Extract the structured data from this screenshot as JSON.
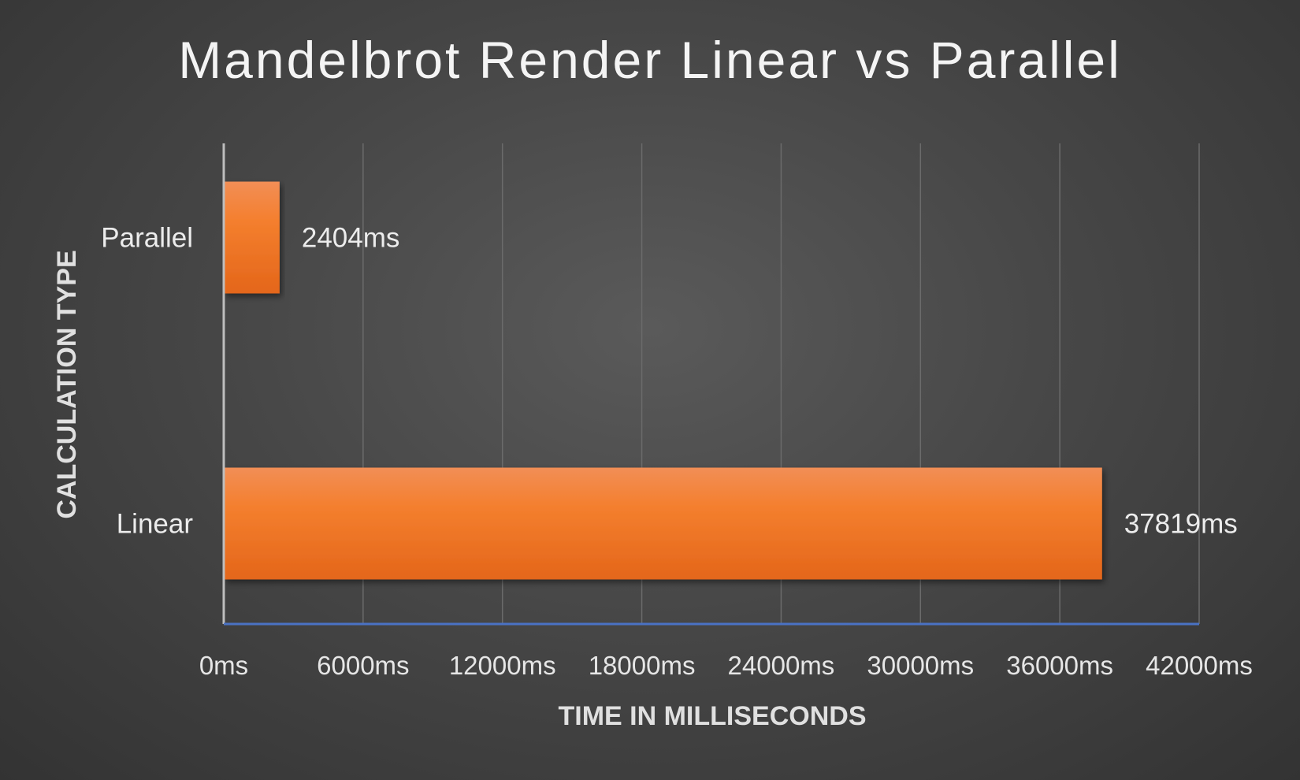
{
  "chart_data": {
    "type": "bar",
    "orientation": "horizontal",
    "title": "Mandelbrot Render Linear vs Parallel",
    "xlabel": "TIME IN MILLISECONDS",
    "ylabel": "CALCULATION TYPE",
    "categories": [
      "Parallel",
      "Linear"
    ],
    "values": [
      2404,
      37819
    ],
    "data_labels": [
      "2404ms",
      "37819ms"
    ],
    "xlim": [
      0,
      42000
    ],
    "x_ticks": [
      0,
      6000,
      12000,
      18000,
      24000,
      30000,
      36000,
      42000
    ],
    "x_tick_labels": [
      "0ms",
      "6000ms",
      "12000ms",
      "18000ms",
      "24000ms",
      "30000ms",
      "36000ms",
      "42000ms"
    ],
    "grid": "vertical",
    "legend": "none",
    "bar_color": "#f07a2a",
    "background": "#474747"
  }
}
